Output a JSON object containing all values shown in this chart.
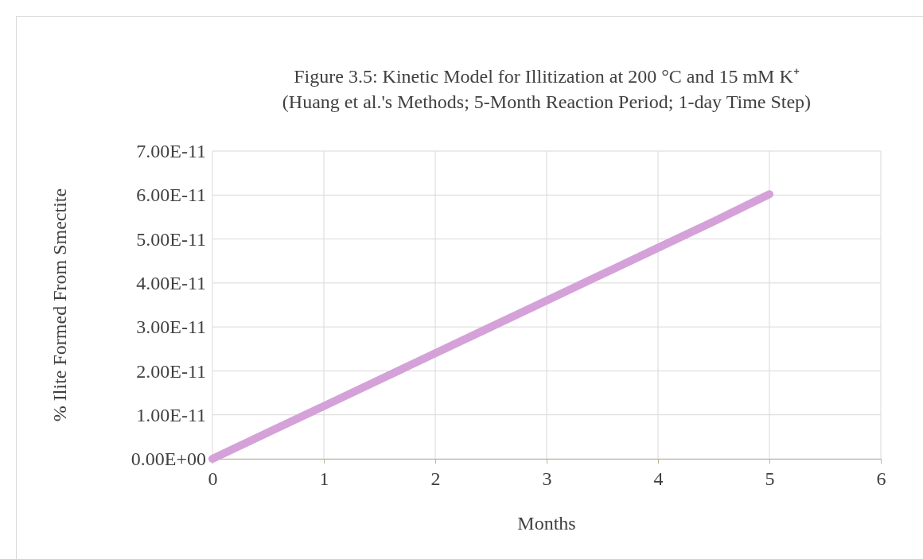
{
  "chart_data": {
    "type": "line",
    "title": "Figure 3.5: Kinetic Model for Illitization at 200 °C and 15 mM K⁺",
    "subtitle": "(Huang et al.'s Methods; 5-Month Reaction Period; 1-day Time Step)",
    "xlabel": "Months",
    "ylabel": "% Ilite Formed From Smectite",
    "x": [
      0,
      0.5,
      1,
      1.5,
      2,
      2.5,
      3,
      3.5,
      4,
      4.5,
      5
    ],
    "series": [
      {
        "color": "#d5a1d9",
        "values": [
          0,
          6e-12,
          1.2e-11,
          1.8e-11,
          2.4e-11,
          3e-11,
          3.6e-11,
          4.2e-11,
          4.8e-11,
          5.4e-11,
          6.02e-11
        ]
      }
    ],
    "xlim": [
      0,
      6
    ],
    "xticks": [
      0,
      1,
      2,
      3,
      4,
      5,
      6
    ],
    "ylim": [
      0,
      7e-11
    ],
    "yticks": [
      {
        "value": 0,
        "label": "0.00E+00"
      },
      {
        "value": 1e-11,
        "label": "1.00E-11"
      },
      {
        "value": 2e-11,
        "label": "2.00E-11"
      },
      {
        "value": 3e-11,
        "label": "3.00E-11"
      },
      {
        "value": 4e-11,
        "label": "4.00E-11"
      },
      {
        "value": 5e-11,
        "label": "5.00E-11"
      },
      {
        "value": 6e-11,
        "label": "6.00E-11"
      },
      {
        "value": 7e-11,
        "label": "7.00E-11"
      }
    ],
    "grid": true,
    "line_style": "solid",
    "marker": "none"
  }
}
